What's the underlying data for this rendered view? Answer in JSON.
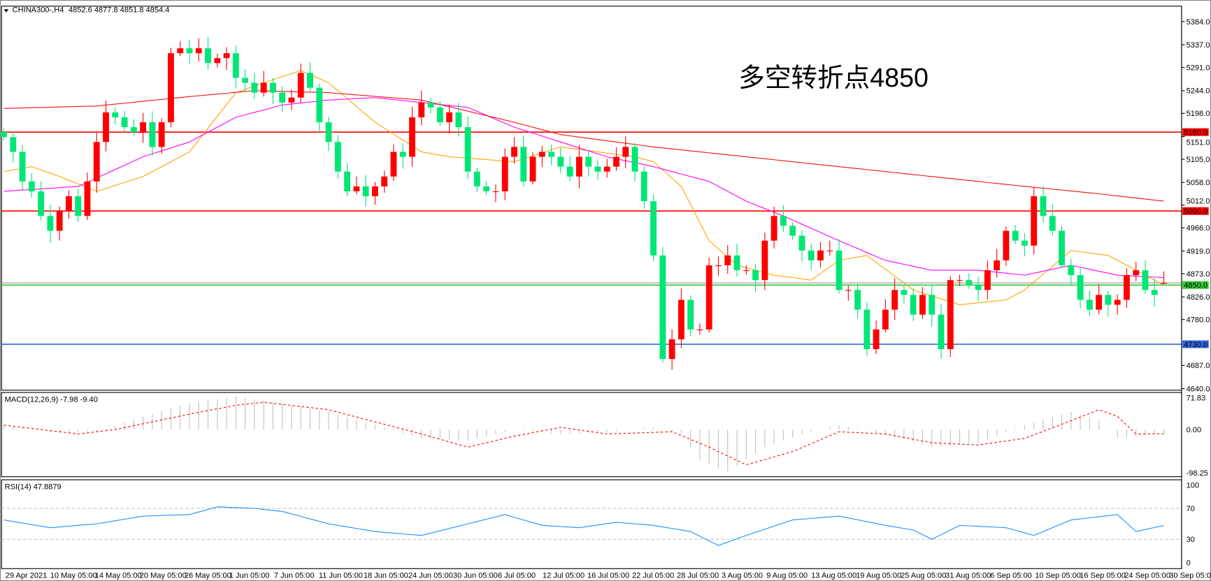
{
  "header": {
    "symbol": "CHINA300-,H4",
    "ohlc": "4852.6 4877.8 4851.8 4854.4"
  },
  "annotation": {
    "text": "多空转折点4850",
    "color": "#ee1111"
  },
  "colors": {
    "up": "#ff0000",
    "down": "#00e676",
    "ma_short": "#ffa500",
    "ma_mid": "#ff00ff",
    "ma_long": "#ee1111",
    "rsi": "#1e90ff",
    "macd_signal": "#ff0000",
    "macd_hist": "#c0c0c0"
  },
  "chart_data": [
    {
      "type": "candlestick",
      "title": "CHINA300-,H4",
      "price_axis_ticks": [
        "5384.0",
        "5337.0",
        "5291.0",
        "5244.0",
        "5198.0",
        "5151.0",
        "5105.0",
        "5058.0",
        "5012.0",
        "4966.0",
        "4919.0",
        "4873.0",
        "4826.0",
        "4780.0",
        "4687.0",
        "4640.0"
      ],
      "ylim": [
        4640,
        5384
      ],
      "time_axis_ticks": [
        "29 Apr 2021",
        "10 May 05:00",
        "14 May 05:00",
        "20 May 05:00",
        "26 May 05:00",
        "1 Jun 05:00",
        "7 Jun 05:00",
        "11 Jun 05:00",
        "18 Jun 05:00",
        "24 Jun 05:00",
        "30 Jun 05:00",
        "6 Jul 05:00",
        "12 Jul 05:00",
        "16 Jul 05:00",
        "22 Jul 05:00",
        "28 Jul 05:00",
        "3 Aug 05:00",
        "9 Aug 05:00",
        "13 Aug 05:00",
        "19 Aug 05:00",
        "25 Aug 05:00",
        "31 Aug 05:00",
        "6 Sep 05:00",
        "10 Sep 05:00",
        "16 Sep 05:00",
        "24 Sep 05:00",
        "30 Sep 05:00"
      ],
      "closes": [
        5150,
        5120,
        5060,
        5040,
        4990,
        4960,
        5000,
        5030,
        4990,
        5060,
        5140,
        5200,
        5190,
        5170,
        5160,
        5180,
        5130,
        5180,
        5320,
        5330,
        5320,
        5330,
        5300,
        5310,
        5320,
        5270,
        5260,
        5240,
        5260,
        5240,
        5220,
        5230,
        5280,
        5250,
        5180,
        5140,
        5080,
        5040,
        5050,
        5030,
        5050,
        5070,
        5120,
        5110,
        5190,
        5220,
        5210,
        5180,
        5200,
        5170,
        5080,
        5050,
        5040,
        5040,
        5110,
        5130,
        5060,
        5110,
        5120,
        5110,
        5090,
        5070,
        5110,
        5090,
        5080,
        5090,
        5110,
        5130,
        5080,
        5020,
        4910,
        4700,
        4740,
        4820,
        4760,
        4760,
        4890,
        4890,
        4910,
        4880,
        4880,
        4860,
        4940,
        4990,
        4970,
        4950,
        4920,
        4900,
        4920,
        4920,
        4840,
        4840,
        4800,
        4720,
        4760,
        4800,
        4840,
        4830,
        4790,
        4830,
        4790,
        4720,
        4860,
        4860,
        4850,
        4840,
        4880,
        4900,
        4960,
        4940,
        4930,
        5030,
        4990,
        4960,
        4890,
        4870,
        4820,
        4800,
        4830,
        4810,
        4820,
        4870,
        4880,
        4840,
        4830,
        4854.4
      ],
      "last_candle": {
        "open": 4852.6,
        "high": 4877.8,
        "low": 4851.8,
        "close": 4854.4
      },
      "moving_averages": [
        {
          "color": "#ffa500",
          "points": [
            [
              0,
              5080
            ],
            [
              3,
              5090
            ],
            [
              6,
              5070
            ],
            [
              10,
              5040
            ],
            [
              15,
              5070
            ],
            [
              20,
              5120
            ],
            [
              25,
              5240
            ],
            [
              28,
              5260
            ],
            [
              32,
              5285
            ],
            [
              35,
              5260
            ],
            [
              40,
              5180
            ],
            [
              45,
              5120
            ],
            [
              48,
              5110
            ],
            [
              55,
              5100
            ],
            [
              60,
              5130
            ],
            [
              64,
              5120
            ],
            [
              68,
              5110
            ],
            [
              70,
              5100
            ],
            [
              73,
              5050
            ],
            [
              76,
              4940
            ],
            [
              79,
              4890
            ],
            [
              83,
              4870
            ],
            [
              87,
              4860
            ],
            [
              90,
              4900
            ],
            [
              93,
              4910
            ],
            [
              98,
              4840
            ],
            [
              103,
              4810
            ],
            [
              108,
              4820
            ],
            [
              110,
              4840
            ],
            [
              115,
              4920
            ],
            [
              119,
              4910
            ],
            [
              122,
              4880
            ],
            [
              125,
              4850
            ]
          ]
        },
        {
          "color": "#ff00ff",
          "points": [
            [
              0,
              5040
            ],
            [
              8,
              5050
            ],
            [
              15,
              5110
            ],
            [
              20,
              5140
            ],
            [
              25,
              5190
            ],
            [
              30,
              5215
            ],
            [
              35,
              5225
            ],
            [
              40,
              5230
            ],
            [
              45,
              5220
            ],
            [
              50,
              5210
            ],
            [
              55,
              5170
            ],
            [
              60,
              5140
            ],
            [
              65,
              5110
            ],
            [
              70,
              5090
            ],
            [
              76,
              5060
            ],
            [
              80,
              5020
            ],
            [
              84,
              4990
            ],
            [
              90,
              4940
            ],
            [
              95,
              4900
            ],
            [
              100,
              4880
            ],
            [
              105,
              4880
            ],
            [
              110,
              4870
            ],
            [
              115,
              4890
            ],
            [
              120,
              4870
            ],
            [
              125,
              4865
            ]
          ]
        },
        {
          "color": "#ee1111",
          "points": [
            [
              0,
              5208
            ],
            [
              10,
              5213
            ],
            [
              20,
              5232
            ],
            [
              27,
              5244
            ],
            [
              35,
              5240
            ],
            [
              45,
              5225
            ],
            [
              55,
              5180
            ],
            [
              60,
              5155
            ],
            [
              70,
              5130
            ],
            [
              80,
              5110
            ],
            [
              90,
              5090
            ],
            [
              100,
              5070
            ],
            [
              110,
              5050
            ],
            [
              118,
              5035
            ],
            [
              125,
              5020
            ]
          ]
        }
      ],
      "horizontal_levels": [
        {
          "label": "5160.0",
          "value": 5160,
          "color": "#ff0000"
        },
        {
          "label": "5000.0",
          "value": 5000,
          "color": "#ff0000"
        },
        {
          "label": "4850.0",
          "value": 4850,
          "color": "#33cc33"
        },
        {
          "label": "4730.0",
          "value": 4730,
          "color": "#3366dd"
        }
      ]
    },
    {
      "type": "bar+line",
      "title": "MACD(12,26,9) -7.98 -9.40",
      "ylim": [
        -98.25,
        71.83
      ],
      "axis_ticks": [
        "71.83",
        "0.00",
        "-98.25"
      ],
      "histogram": [
        [
          0,
          10
        ],
        [
          5,
          -5
        ],
        [
          10,
          -5
        ],
        [
          15,
          30
        ],
        [
          20,
          60
        ],
        [
          25,
          75
        ],
        [
          30,
          60
        ],
        [
          35,
          40
        ],
        [
          40,
          10
        ],
        [
          45,
          -20
        ],
        [
          50,
          -25
        ],
        [
          55,
          0
        ],
        [
          60,
          -10
        ],
        [
          65,
          -5
        ],
        [
          70,
          5
        ],
        [
          73,
          -10
        ],
        [
          75,
          -70
        ],
        [
          78,
          -95
        ],
        [
          82,
          -40
        ],
        [
          86,
          -10
        ],
        [
          90,
          10
        ],
        [
          95,
          -10
        ],
        [
          100,
          -40
        ],
        [
          105,
          -30
        ],
        [
          110,
          10
        ],
        [
          115,
          40
        ],
        [
          118,
          20
        ],
        [
          120,
          -20
        ],
        [
          125,
          -7.98
        ]
      ],
      "signal": [
        [
          0,
          10
        ],
        [
          8,
          -10
        ],
        [
          12,
          0
        ],
        [
          20,
          35
        ],
        [
          25,
          55
        ],
        [
          28,
          62
        ],
        [
          35,
          45
        ],
        [
          45,
          -10
        ],
        [
          50,
          -40
        ],
        [
          55,
          -15
        ],
        [
          60,
          5
        ],
        [
          65,
          -10
        ],
        [
          72,
          -5
        ],
        [
          76,
          -40
        ],
        [
          80,
          -80
        ],
        [
          85,
          -50
        ],
        [
          90,
          -5
        ],
        [
          95,
          -10
        ],
        [
          100,
          -30
        ],
        [
          105,
          -35
        ],
        [
          110,
          -20
        ],
        [
          115,
          20
        ],
        [
          118,
          45
        ],
        [
          120,
          30
        ],
        [
          122,
          -10
        ],
        [
          125,
          -9.4
        ]
      ]
    },
    {
      "type": "line",
      "title": "RSI(14) 47.8879",
      "ylim": [
        0,
        100
      ],
      "axis_ticks": [
        "100",
        "70",
        "30",
        "0"
      ],
      "levels": [
        70,
        30
      ],
      "values": [
        [
          0,
          55
        ],
        [
          5,
          45
        ],
        [
          10,
          50
        ],
        [
          15,
          60
        ],
        [
          20,
          62
        ],
        [
          23,
          72
        ],
        [
          27,
          70
        ],
        [
          30,
          66
        ],
        [
          35,
          50
        ],
        [
          40,
          40
        ],
        [
          45,
          35
        ],
        [
          50,
          50
        ],
        [
          54,
          62
        ],
        [
          58,
          48
        ],
        [
          62,
          45
        ],
        [
          66,
          52
        ],
        [
          70,
          48
        ],
        [
          74,
          40
        ],
        [
          77,
          22
        ],
        [
          80,
          35
        ],
        [
          85,
          55
        ],
        [
          90,
          60
        ],
        [
          95,
          48
        ],
        [
          98,
          42
        ],
        [
          100,
          30
        ],
        [
          103,
          48
        ],
        [
          108,
          45
        ],
        [
          111,
          35
        ],
        [
          115,
          55
        ],
        [
          120,
          62
        ],
        [
          122,
          40
        ],
        [
          125,
          47.8879
        ]
      ]
    }
  ]
}
